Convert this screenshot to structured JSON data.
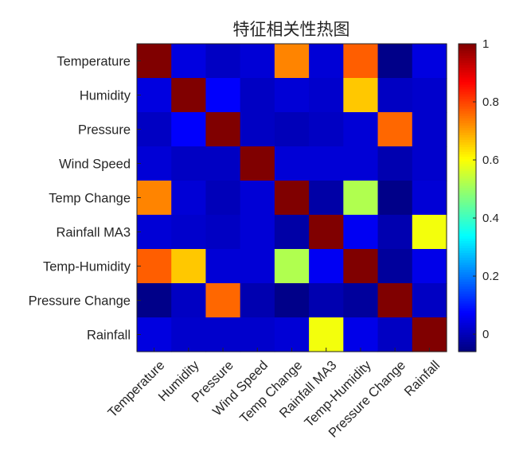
{
  "chart_data": {
    "type": "heatmap",
    "title": "特征相关性热图",
    "labels": [
      "Temperature",
      "Humidity",
      "Pressure",
      "Wind Speed",
      "Temp Change",
      "Rainfall MA3",
      "Temp-Humidity",
      "Pressure Change",
      "Rainfall"
    ],
    "values": [
      [
        1.0,
        0.04,
        0.01,
        0.03,
        0.73,
        0.03,
        0.77,
        -0.05,
        0.04
      ],
      [
        0.04,
        1.0,
        0.07,
        0.01,
        0.03,
        0.02,
        0.66,
        0.01,
        0.02
      ],
      [
        0.01,
        0.07,
        1.0,
        0.01,
        0.0,
        0.01,
        0.03,
        0.76,
        0.02
      ],
      [
        0.03,
        0.01,
        0.01,
        1.0,
        0.03,
        0.03,
        0.03,
        -0.01,
        0.02
      ],
      [
        0.73,
        0.03,
        0.0,
        0.03,
        1.0,
        -0.02,
        0.52,
        -0.05,
        0.03
      ],
      [
        0.03,
        0.02,
        0.01,
        0.03,
        -0.02,
        1.0,
        0.06,
        -0.01,
        0.59
      ],
      [
        0.77,
        0.66,
        0.03,
        0.03,
        0.52,
        0.06,
        1.0,
        -0.03,
        0.05
      ],
      [
        -0.05,
        0.01,
        0.76,
        -0.01,
        -0.05,
        -0.01,
        -0.03,
        1.0,
        0.01
      ],
      [
        0.04,
        0.02,
        0.02,
        0.02,
        0.03,
        0.59,
        0.05,
        0.01,
        1.0
      ]
    ],
    "colorbar": {
      "colormap": "jet",
      "range": [
        -0.06,
        1
      ],
      "ticks": [
        "0",
        "0.2",
        "0.4",
        "0.6",
        "0.8",
        "1"
      ]
    },
    "grid": false,
    "legend": "colorbar-right"
  }
}
